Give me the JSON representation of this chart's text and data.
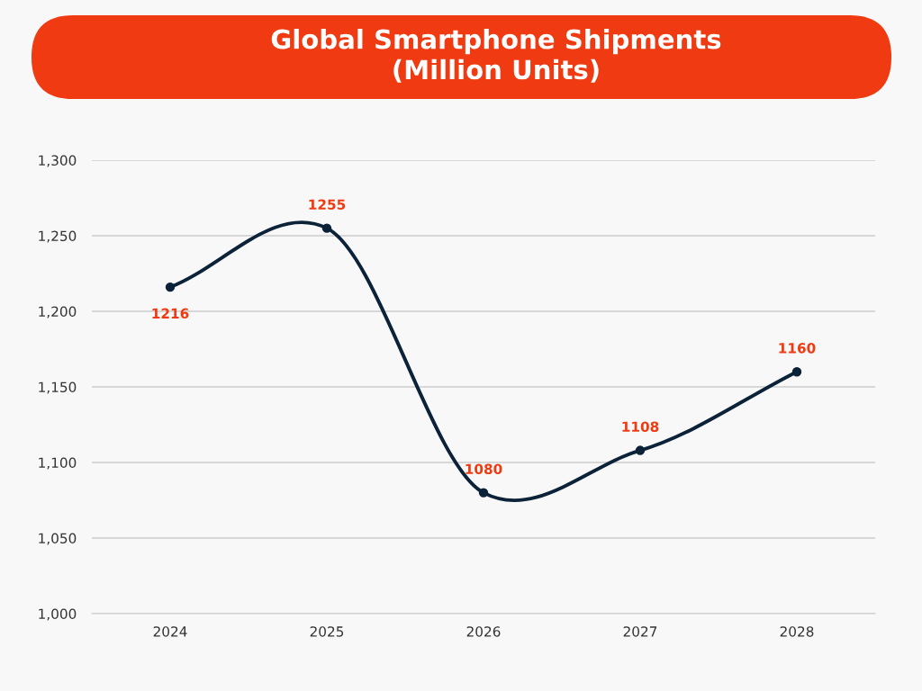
{
  "chart_data": {
    "type": "line",
    "title": "Global Smartphone Shipments\n(Million Units)",
    "categories": [
      "2024",
      "2025",
      "2026",
      "2027",
      "2028"
    ],
    "series": [
      {
        "color": "#0b2238",
        "values": [
          1216,
          1255,
          1080,
          1108,
          1160
        ]
      }
    ],
    "ylim": [
      1000,
      1300
    ],
    "yticks": [
      {
        "value": 1000,
        "label": "1,000"
      },
      {
        "value": 1050,
        "label": "1,050"
      },
      {
        "value": 1100,
        "label": "1,100"
      },
      {
        "value": 1150,
        "label": "1,150"
      },
      {
        "value": 1200,
        "label": "1,200"
      },
      {
        "value": 1250,
        "label": "1,250"
      },
      {
        "value": 1300,
        "label": "1,300"
      }
    ],
    "grid": "y",
    "data_labels": true,
    "marker": "circle",
    "line_style": "solid"
  }
}
